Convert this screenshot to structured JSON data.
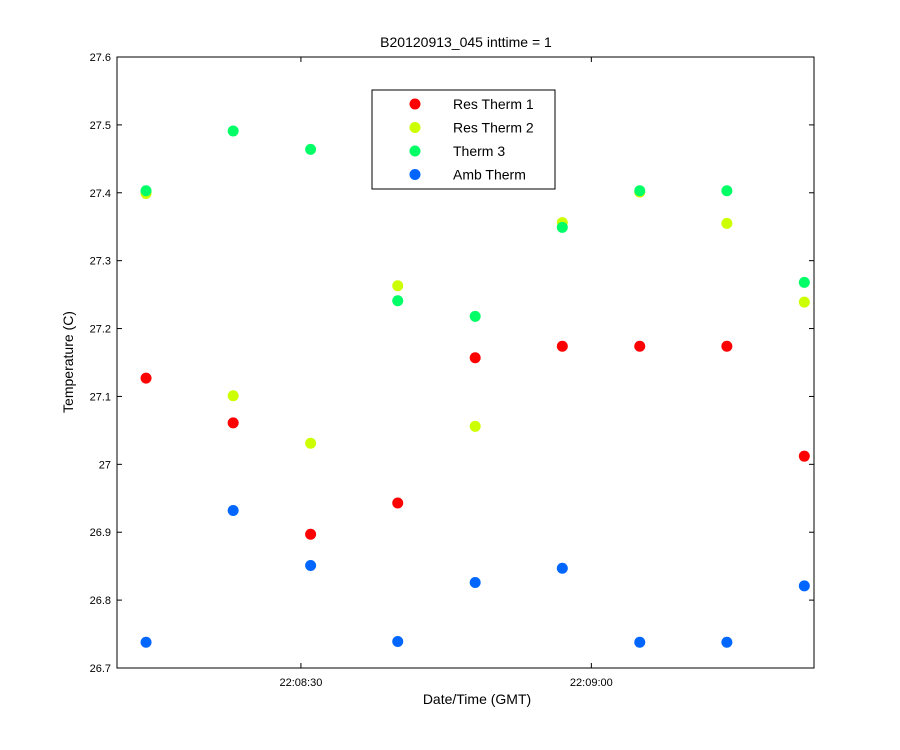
{
  "chart_data": {
    "type": "scatter",
    "title": "B20120913_045 inttime = 1",
    "xlabel": "Date/Time (GMT)",
    "ylabel": "Temperature (C)",
    "xlim": [
      "22:08:11",
      "22:09:23"
    ],
    "ylim": [
      26.7,
      27.6
    ],
    "yticks": [
      26.7,
      26.8,
      26.9,
      27.0,
      27.1,
      27.2,
      27.3,
      27.4,
      27.5,
      27.6
    ],
    "ytick_labels": [
      "26.7",
      "26.8",
      "26.9",
      "27",
      "27.1",
      "27.2",
      "27.3",
      "27.4",
      "27.5",
      "27.6"
    ],
    "xticks": [
      "22:08:30",
      "22:09:00"
    ],
    "x": [
      "22:08:14",
      "22:08:23",
      "22:08:31",
      "22:08:40",
      "22:08:48",
      "22:08:57",
      "22:09:05",
      "22:09:14",
      "22:09:22"
    ],
    "legend_position": "top-center",
    "grid": false,
    "series": [
      {
        "name": "Res Therm 1",
        "color": "#ff0000",
        "values": [
          27.127,
          27.061,
          26.897,
          26.943,
          27.157,
          27.174,
          27.174,
          27.174,
          27.012
        ]
      },
      {
        "name": "Res Therm 2",
        "color": "#ccff00",
        "values": [
          27.399,
          27.101,
          27.031,
          27.263,
          27.056,
          27.356,
          27.401,
          27.355,
          27.239
        ]
      },
      {
        "name": "Therm 3",
        "color": "#00ff66",
        "values": [
          27.403,
          27.491,
          27.464,
          27.241,
          27.218,
          27.349,
          27.403,
          27.403,
          27.268
        ]
      },
      {
        "name": "Amb Therm",
        "color": "#0066ff",
        "values": [
          26.738,
          26.932,
          26.851,
          26.739,
          26.826,
          26.847,
          26.738,
          26.738,
          26.821
        ]
      }
    ]
  }
}
